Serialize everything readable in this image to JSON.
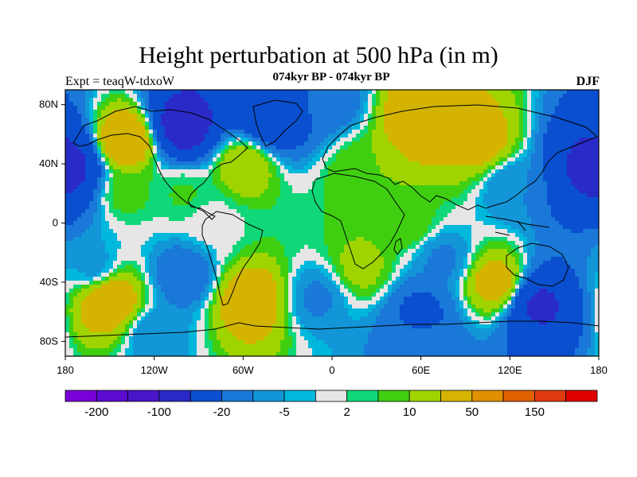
{
  "title": "Height perturbation at 500 hPa (in m)",
  "subtitle": "074kyr BP - 074kyr BP",
  "experiment": "Expt = teaqW-tdxoW",
  "season": "DJF",
  "axes": {
    "lat_ticks": [
      "80N",
      "40N",
      "0",
      "40S",
      "80S"
    ],
    "lon_ticks": [
      "180",
      "120W",
      "60W",
      "0",
      "60E",
      "120E",
      "180"
    ]
  },
  "colorbar": {
    "colors": [
      "#7a00d8",
      "#5c0bd0",
      "#4a14c8",
      "#2a2ac8",
      "#0a4fd0",
      "#1a78d8",
      "#1296d8",
      "#00b8dc",
      "#e6e6e6",
      "#10d878",
      "#3fcf10",
      "#a0d400",
      "#d4b400",
      "#e09000",
      "#e06000",
      "#e03a10",
      "#e00000"
    ],
    "labels": [
      "-200",
      "-100",
      "-20",
      "-5",
      "2",
      "10",
      "50",
      "150"
    ]
  },
  "chart_data": {
    "type": "heatmap",
    "title": "Height perturbation at 500 hPa (in m)",
    "subtitle": "074kyr BP - 074kyr BP",
    "x_range": [
      -180,
      180
    ],
    "y_range": [
      -90,
      90
    ],
    "x_ticks": [
      -180,
      -120,
      -60,
      0,
      60,
      120,
      180
    ],
    "y_ticks": [
      80,
      40,
      0,
      -40,
      -80
    ],
    "levels": [
      -250,
      -200,
      -150,
      -100,
      -50,
      -20,
      -10,
      -5,
      -2,
      2,
      5,
      10,
      20,
      50,
      100,
      150,
      200,
      250
    ],
    "features": [
      {
        "lon": -100,
        "lat": 65,
        "value": -70
      },
      {
        "lon": -40,
        "lat": 72,
        "value": -45
      },
      {
        "lon": 0,
        "lat": 82,
        "value": -15
      },
      {
        "lon": 60,
        "lat": 70,
        "value": 40
      },
      {
        "lon": 100,
        "lat": 55,
        "value": 30
      },
      {
        "lon": -140,
        "lat": 55,
        "value": 45
      },
      {
        "lon": -178,
        "lat": 38,
        "value": -60
      },
      {
        "lon": 178,
        "lat": 38,
        "value": -60
      },
      {
        "lon": -60,
        "lat": 38,
        "value": 20
      },
      {
        "lon": 20,
        "lat": 35,
        "value": 10
      },
      {
        "lon": 120,
        "lat": 25,
        "value": -10
      },
      {
        "lon": -100,
        "lat": 20,
        "value": 6
      },
      {
        "lon": -140,
        "lat": 20,
        "value": 8
      },
      {
        "lon": -80,
        "lat": 0,
        "value": 0
      },
      {
        "lon": 50,
        "lat": 0,
        "value": 10
      },
      {
        "lon": -160,
        "lat": -30,
        "value": -8
      },
      {
        "lon": -100,
        "lat": -35,
        "value": -20
      },
      {
        "lon": 20,
        "lat": -30,
        "value": 14
      },
      {
        "lon": 75,
        "lat": -25,
        "value": -12
      },
      {
        "lon": 110,
        "lat": -40,
        "value": 30
      },
      {
        "lon": -150,
        "lat": -52,
        "value": 40
      },
      {
        "lon": -55,
        "lat": -52,
        "value": 35
      },
      {
        "lon": -10,
        "lat": -50,
        "value": -12
      },
      {
        "lon": 140,
        "lat": -55,
        "value": -55
      },
      {
        "lon": 60,
        "lat": -60,
        "value": -25
      },
      {
        "lon": -120,
        "lat": -75,
        "value": -10
      },
      {
        "lon": 60,
        "lat": -82,
        "value": -15
      }
    ]
  }
}
